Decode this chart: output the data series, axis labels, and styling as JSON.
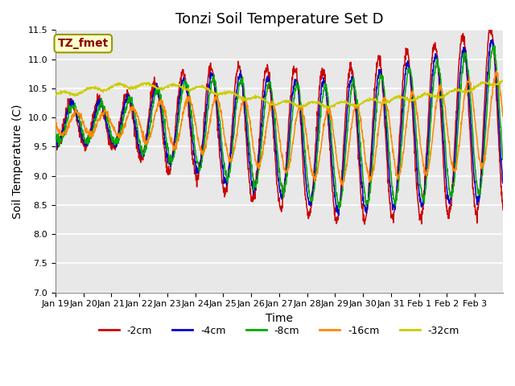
{
  "title": "Tonzi Soil Temperature Set D",
  "xlabel": "Time",
  "ylabel": "Soil Temperature (C)",
  "ylim": [
    7.0,
    11.5
  ],
  "annotation_text": "TZ_fmet",
  "annotation_color": "#8B0000",
  "annotation_bg": "#FFFFCC",
  "series_colors": {
    "-2cm": "#CC0000",
    "-4cm": "#0000CC",
    "-8cm": "#00AA00",
    "-16cm": "#FF8800",
    "-32cm": "#CCCC00"
  },
  "legend_labels": [
    "-2cm",
    "-4cm",
    "-8cm",
    "-16cm",
    "-32cm"
  ],
  "x_tick_labels": [
    "Jan 19",
    "Jan 20",
    "Jan 21",
    "Jan 22",
    "Jan 23",
    "Jan 24",
    "Jan 25",
    "Jan 26",
    "Jan 27",
    "Jan 28",
    "Jan 29",
    "Jan 30",
    "Jan 31",
    "Feb 1",
    "Feb 2",
    "Feb 3"
  ],
  "background_color": "#FFFFFF",
  "plot_bg_color": "#E8E8E8",
  "grid_color": "#FFFFFF",
  "title_fontsize": 13,
  "axis_label_fontsize": 10,
  "tick_fontsize": 8
}
